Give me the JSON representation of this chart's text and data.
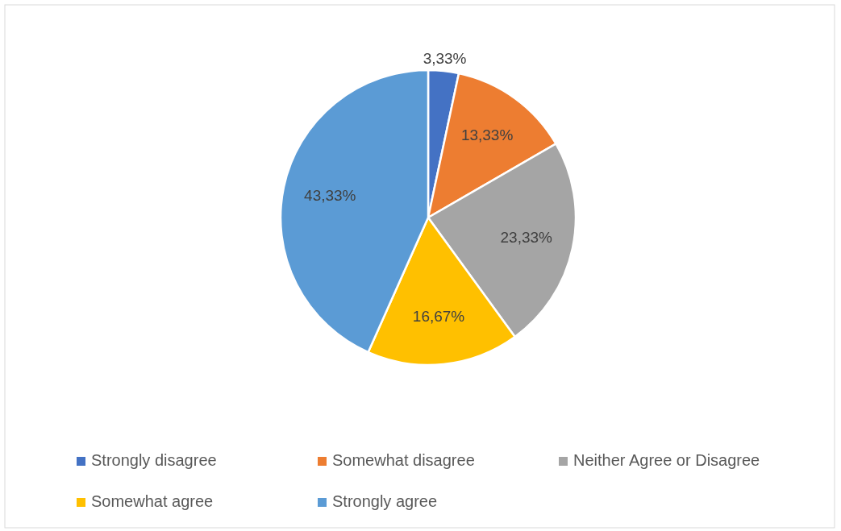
{
  "chart_data": {
    "type": "pie",
    "categories": [
      "Strongly disagree",
      "Somewhat disagree",
      "Neither Agree or Disagree",
      "Somewhat agree",
      "Strongly agree"
    ],
    "values": [
      3.33,
      13.33,
      23.33,
      16.67,
      43.33
    ],
    "colors": [
      "#4472c4",
      "#ed7d31",
      "#a5a5a5",
      "#ffc000",
      "#5b9bd5"
    ],
    "value_labels": [
      "3,33%",
      "13,33%",
      "23,33%",
      "16,67%",
      "43,33%"
    ],
    "legend": "bottom"
  }
}
